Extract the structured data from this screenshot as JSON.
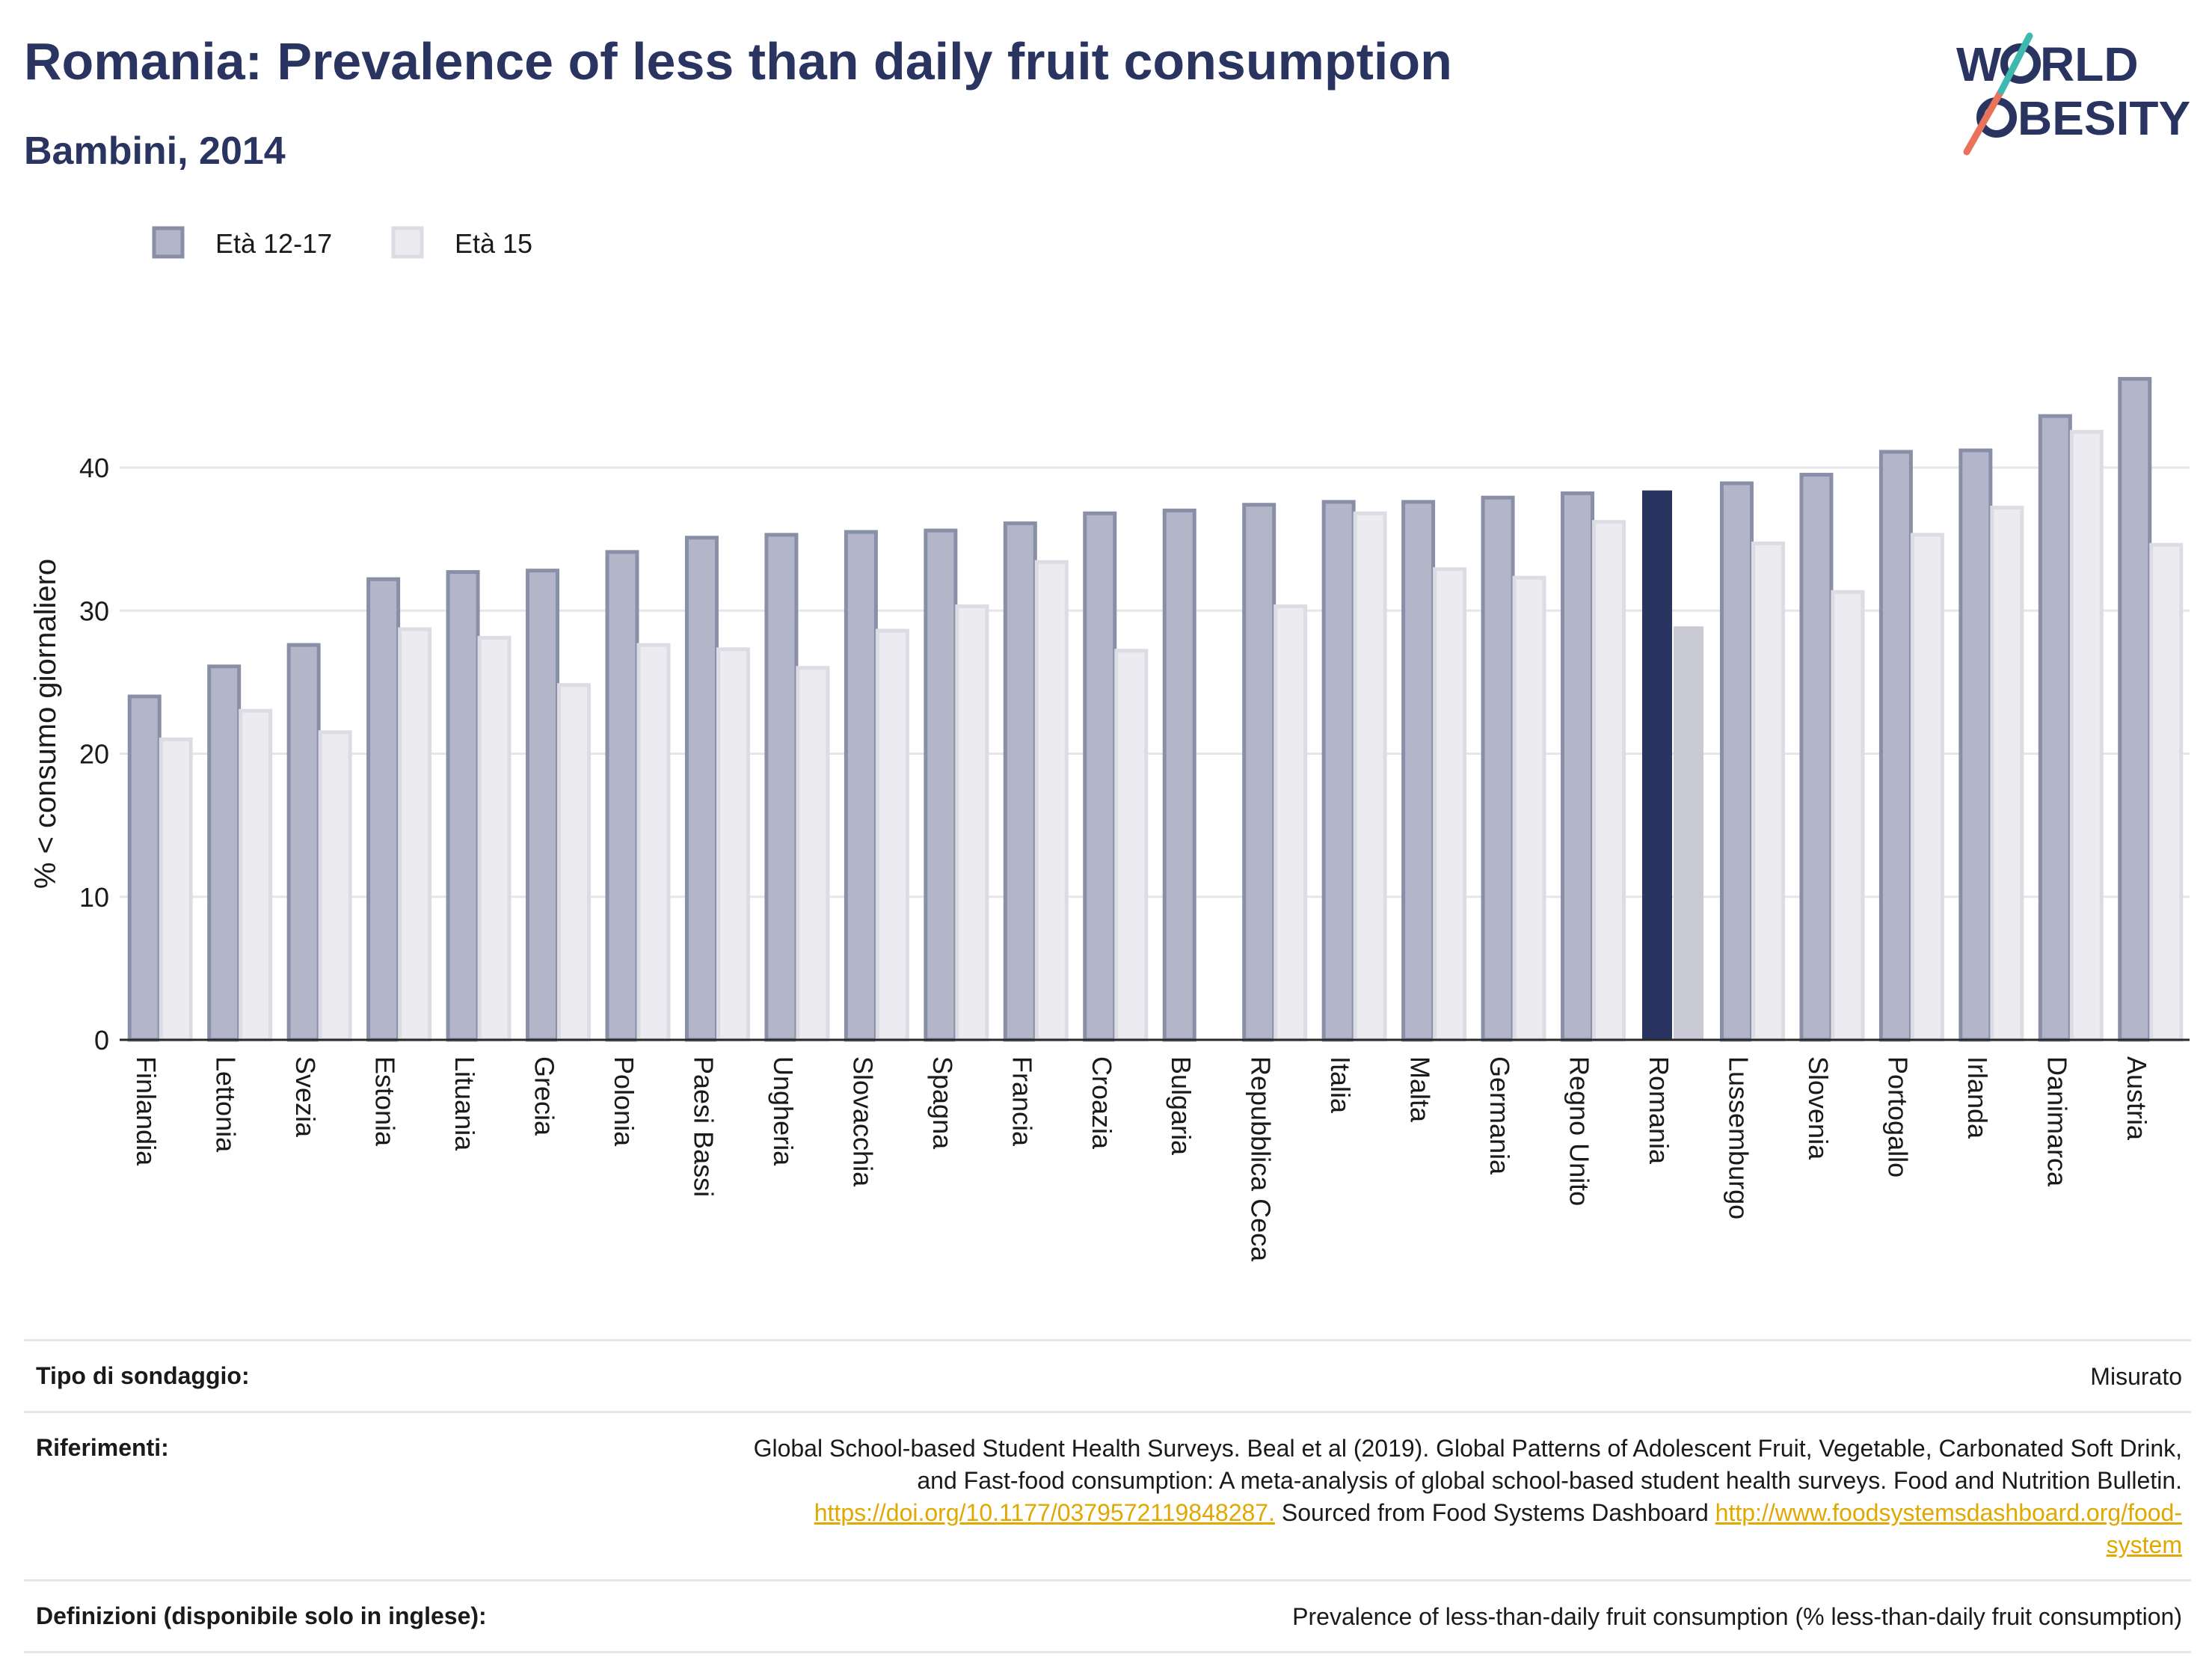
{
  "title": "Romania: Prevalence of less than daily fruit consumption",
  "subtitle": "Bambini, 2014",
  "logo": {
    "line1": "W",
    "line1b": "RLD",
    "line2": "BESITY",
    "accent_teal": "#3fb8af",
    "accent_red": "#e8735a",
    "text_color": "#2a3461"
  },
  "colors": {
    "series1": "#b3b6c8",
    "series1_stroke": "#8a8fa8",
    "series2": "#ebebf0",
    "series2_stroke": "#dcdce4",
    "highlight1": "#2a3461",
    "highlight2": "#c8c9d4",
    "title": "#2a3461"
  },
  "chart_data": {
    "type": "bar",
    "ylabel": "% < consumo giornaliero",
    "ylim": [
      0,
      47
    ],
    "yticks": [
      0,
      10,
      20,
      30,
      40
    ],
    "highlight": "Romania",
    "categories": [
      "Finlandia",
      "Lettonia",
      "Svezia",
      "Estonia",
      "Lituania",
      "Grecia",
      "Polonia",
      "Paesi Bassi",
      "Ungheria",
      "Slovacchia",
      "Spagna",
      "Francia",
      "Croazia",
      "Bulgaria",
      "Repubblica Ceca",
      "Italia",
      "Malta",
      "Germania",
      "Regno Unito",
      "Romania",
      "Lussemburgo",
      "Slovenia",
      "Portogallo",
      "Irlanda",
      "Danimarca",
      "Austria"
    ],
    "series": [
      {
        "name": "Età 12-17",
        "values": [
          24,
          26.1,
          27.6,
          32.2,
          32.7,
          32.8,
          34.1,
          35.1,
          35.3,
          35.5,
          35.6,
          36.1,
          36.8,
          37,
          37.4,
          37.6,
          37.6,
          37.9,
          38.2,
          38.4,
          38.9,
          39.5,
          41.1,
          41.2,
          43.6,
          46.2
        ]
      },
      {
        "name": "Età 15",
        "values": [
          21,
          23,
          21.5,
          28.7,
          28.1,
          24.8,
          27.6,
          27.3,
          26,
          28.6,
          30.3,
          33.4,
          27.2,
          null,
          30.3,
          36.8,
          32.9,
          32.3,
          36.2,
          28.9,
          34.7,
          31.3,
          35.3,
          37.2,
          42.5,
          34.6
        ]
      }
    ]
  },
  "footer": {
    "survey_label": "Tipo di sondaggio:",
    "survey_value": "Misurato",
    "refs_label": "Riferimenti:",
    "refs_line1": "Global School-based Student Health Surveys. Beal et al (2019). Global Patterns of Adolescent Fruit, Vegetable, Carbonated Soft Drink,",
    "refs_line2": "and Fast-food consumption: A meta-analysis of global school-based student health surveys. Food and Nutrition Bulletin.",
    "refs_link1": "https://doi.org/10.1177/0379572119848287.",
    "refs_mid": " Sourced from Food Systems Dashboard ",
    "refs_link2a": "http://www.foodsystemsdashboard.org/food-",
    "refs_link2b": "system",
    "defs_label": "Definizioni (disponibile solo in inglese):",
    "defs_value": "Prevalence of less-than-daily fruit consumption (% less-than-daily fruit consumption)"
  }
}
